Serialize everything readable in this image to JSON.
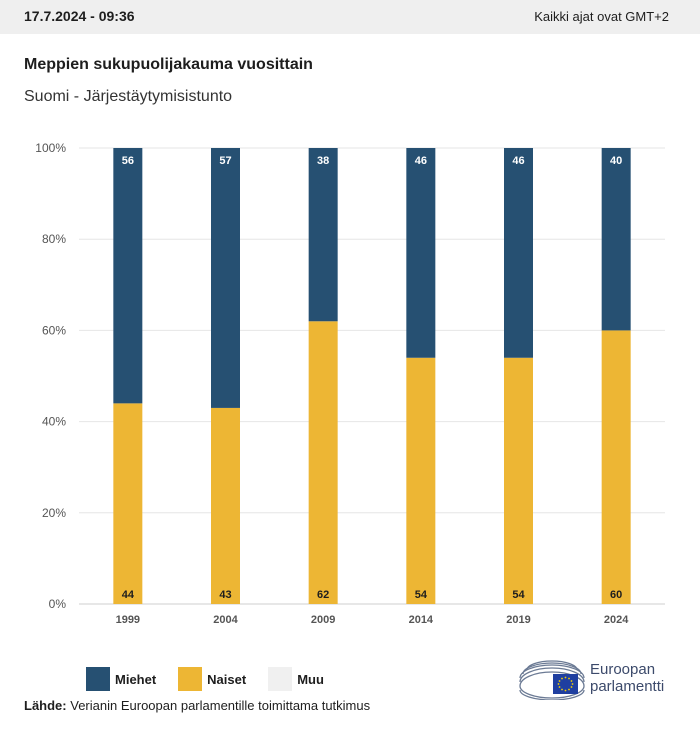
{
  "header": {
    "timestamp": "17.7.2024 - 09:36",
    "timezone": "Kaikki ajat ovat GMT+2"
  },
  "title": "Meppien sukupuolijakauma vuosittain",
  "subtitle": "Suomi - Järjestäytymisistunto",
  "colors": {
    "miehet": "#265072",
    "naiset": "#edb634",
    "muu": "#f0f0f0",
    "grid": "#e6e6e6",
    "axis_text": "#555555"
  },
  "chart_data": {
    "type": "bar",
    "stacked": true,
    "categories": [
      "1999",
      "2004",
      "2009",
      "2014",
      "2019",
      "2024"
    ],
    "series": [
      {
        "name": "Naiset",
        "values": [
          44,
          43,
          62,
          54,
          54,
          60
        ]
      },
      {
        "name": "Miehet",
        "values": [
          56,
          57,
          38,
          46,
          46,
          40
        ]
      },
      {
        "name": "Muu",
        "values": [
          0,
          0,
          0,
          0,
          0,
          0
        ]
      }
    ],
    "ylim": [
      0,
      100
    ],
    "yticks": [
      "0%",
      "20%",
      "40%",
      "60%",
      "80%",
      "100%"
    ],
    "grid": true
  },
  "legend": [
    {
      "label": "Miehet",
      "color": "#265072"
    },
    {
      "label": "Naiset",
      "color": "#edb634"
    },
    {
      "label": "Muu",
      "color": "#f0f0f0"
    }
  ],
  "source": {
    "label": "Lähde:",
    "text": "Verianin Euroopan parlamentille toimittama tutkimus"
  },
  "logo": {
    "line1": "Euroopan",
    "line2": "parlamentti"
  }
}
